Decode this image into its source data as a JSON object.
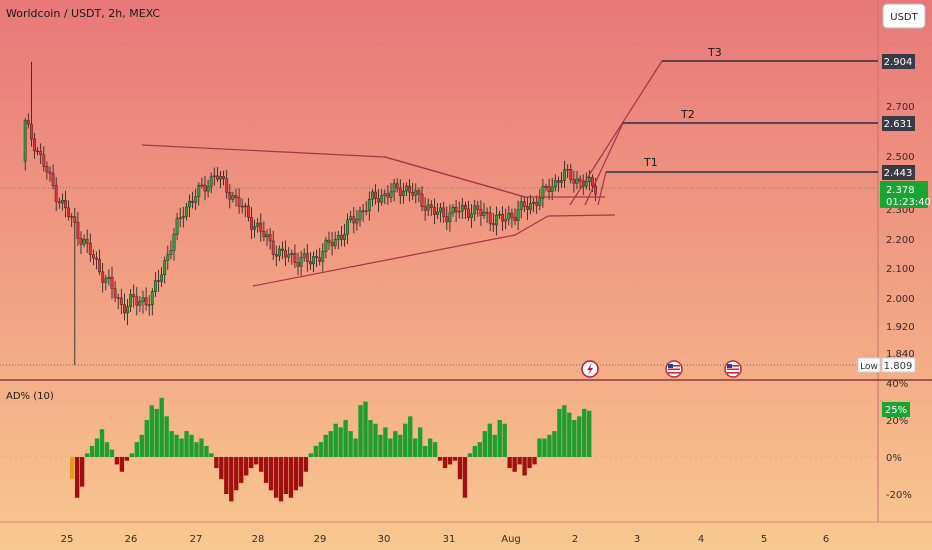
{
  "header": {
    "title": "Worldcoin / USDT, 2h, MEXC",
    "currency_button": "USDT"
  },
  "main_pane": {
    "price_ticks": [
      "2.700",
      "2.500",
      "2.300",
      "2.200",
      "2.100",
      "2.000",
      "1.920",
      "1.840"
    ],
    "target_labels": [
      {
        "name": "T3",
        "price": "2.904"
      },
      {
        "name": "T2",
        "price": "2.631"
      },
      {
        "name": "T1",
        "price": "2.443"
      }
    ],
    "last_price": "2.378",
    "countdown": "01:23:40",
    "low_label": "Low",
    "low_value": "1.809"
  },
  "indicator_pane": {
    "title": "AD% (10)",
    "ticks": [
      "40%",
      "20%",
      "0%",
      "-20%"
    ],
    "current_value": "25%"
  },
  "x_axis": {
    "labels": [
      "25",
      "26",
      "27",
      "28",
      "29",
      "30",
      "31",
      "Aug",
      "2",
      "3",
      "4",
      "5",
      "6"
    ]
  },
  "colors": {
    "bull": "#22a63a",
    "bear": "#e8313a",
    "wick": "#1b1b1b",
    "trendline": "#a8324a",
    "target_line": "#2d2d3a",
    "last_price_bg": "#18a532",
    "ad_positive": "#1e9e2e",
    "ad_negative": "#a01010",
    "bg_top": "#e8787a",
    "bg_bottom": "#f8c48a"
  },
  "event_icons": [
    "lightning-icon",
    "us-flag-icon",
    "us-flag-icon"
  ],
  "chart_data": [
    {
      "type": "candlestick",
      "title": "Worldcoin / USDT, 2h, MEXC",
      "x_labels": [
        "25",
        "26",
        "27",
        "28",
        "29",
        "30",
        "31",
        "Aug",
        "2",
        "3",
        "4",
        "5",
        "6"
      ],
      "y_ticks": [
        1.84,
        1.92,
        2.0,
        2.1,
        2.2,
        2.3,
        2.5,
        2.7
      ],
      "ylim": [
        1.78,
        2.98
      ],
      "last_price": 2.378,
      "low": 1.809,
      "targets": [
        {
          "label": "T1",
          "price": 2.443
        },
        {
          "label": "T2",
          "price": 2.631
        },
        {
          "label": "T3",
          "price": 2.904
        }
      ],
      "candles_sampled": [
        {
          "o": 2.48,
          "h": 2.8,
          "l": 2.45,
          "c": 2.63
        },
        {
          "o": 2.6,
          "h": 2.72,
          "l": 2.3,
          "c": 2.35
        },
        {
          "o": 2.35,
          "h": 2.42,
          "l": 2.1,
          "c": 2.16
        },
        {
          "o": 2.14,
          "h": 2.2,
          "l": 1.86,
          "c": 1.98
        },
        {
          "o": 1.98,
          "h": 2.05,
          "l": 1.93,
          "c": 2.0
        },
        {
          "o": 2.0,
          "h": 2.32,
          "l": 1.98,
          "c": 2.3
        },
        {
          "o": 2.3,
          "h": 2.52,
          "l": 2.28,
          "c": 2.43
        },
        {
          "o": 2.43,
          "h": 2.45,
          "l": 2.22,
          "c": 2.28
        },
        {
          "o": 2.28,
          "h": 2.31,
          "l": 2.13,
          "c": 2.15
        },
        {
          "o": 2.15,
          "h": 2.2,
          "l": 2.08,
          "c": 2.12
        },
        {
          "o": 2.12,
          "h": 2.24,
          "l": 2.1,
          "c": 2.22
        },
        {
          "o": 2.22,
          "h": 2.36,
          "l": 2.2,
          "c": 2.34
        },
        {
          "o": 2.34,
          "h": 2.45,
          "l": 2.32,
          "c": 2.38
        },
        {
          "o": 2.38,
          "h": 2.4,
          "l": 2.26,
          "c": 2.28
        },
        {
          "o": 2.28,
          "h": 2.34,
          "l": 2.24,
          "c": 2.3
        },
        {
          "o": 2.3,
          "h": 2.36,
          "l": 2.24,
          "c": 2.26
        },
        {
          "o": 2.26,
          "h": 2.34,
          "l": 2.22,
          "c": 2.32
        },
        {
          "o": 2.32,
          "h": 2.46,
          "l": 2.3,
          "c": 2.43
        },
        {
          "o": 2.43,
          "h": 2.46,
          "l": 2.32,
          "c": 2.38
        }
      ]
    },
    {
      "type": "bar",
      "title": "AD% (10)",
      "ylabel": "%",
      "y_ticks": [
        -20,
        0,
        20,
        40
      ],
      "ylim": [
        -28,
        40
      ],
      "current_value": 25,
      "values": [
        -12,
        -22,
        -16,
        2,
        6,
        10,
        15,
        8,
        4,
        -4,
        -8,
        -2,
        2,
        8,
        12,
        20,
        28,
        26,
        32,
        22,
        14,
        12,
        10,
        14,
        12,
        8,
        10,
        6,
        2,
        -6,
        -12,
        -20,
        -24,
        -18,
        -14,
        -10,
        -6,
        -4,
        -8,
        -14,
        -18,
        -22,
        -24,
        -20,
        -22,
        -18,
        -16,
        -8,
        2,
        6,
        8,
        12,
        14,
        18,
        16,
        20,
        14,
        10,
        28,
        30,
        20,
        18,
        12,
        16,
        10,
        14,
        12,
        18,
        22,
        10,
        16,
        6,
        10,
        8,
        -2,
        -6,
        -4,
        -2,
        -12,
        -22,
        2,
        6,
        8,
        14,
        18,
        12,
        20,
        18,
        -6,
        -8,
        -4,
        -10,
        -6,
        -4,
        10,
        10,
        12,
        14,
        26,
        28,
        24,
        20,
        22,
        26,
        25
      ]
    }
  ]
}
